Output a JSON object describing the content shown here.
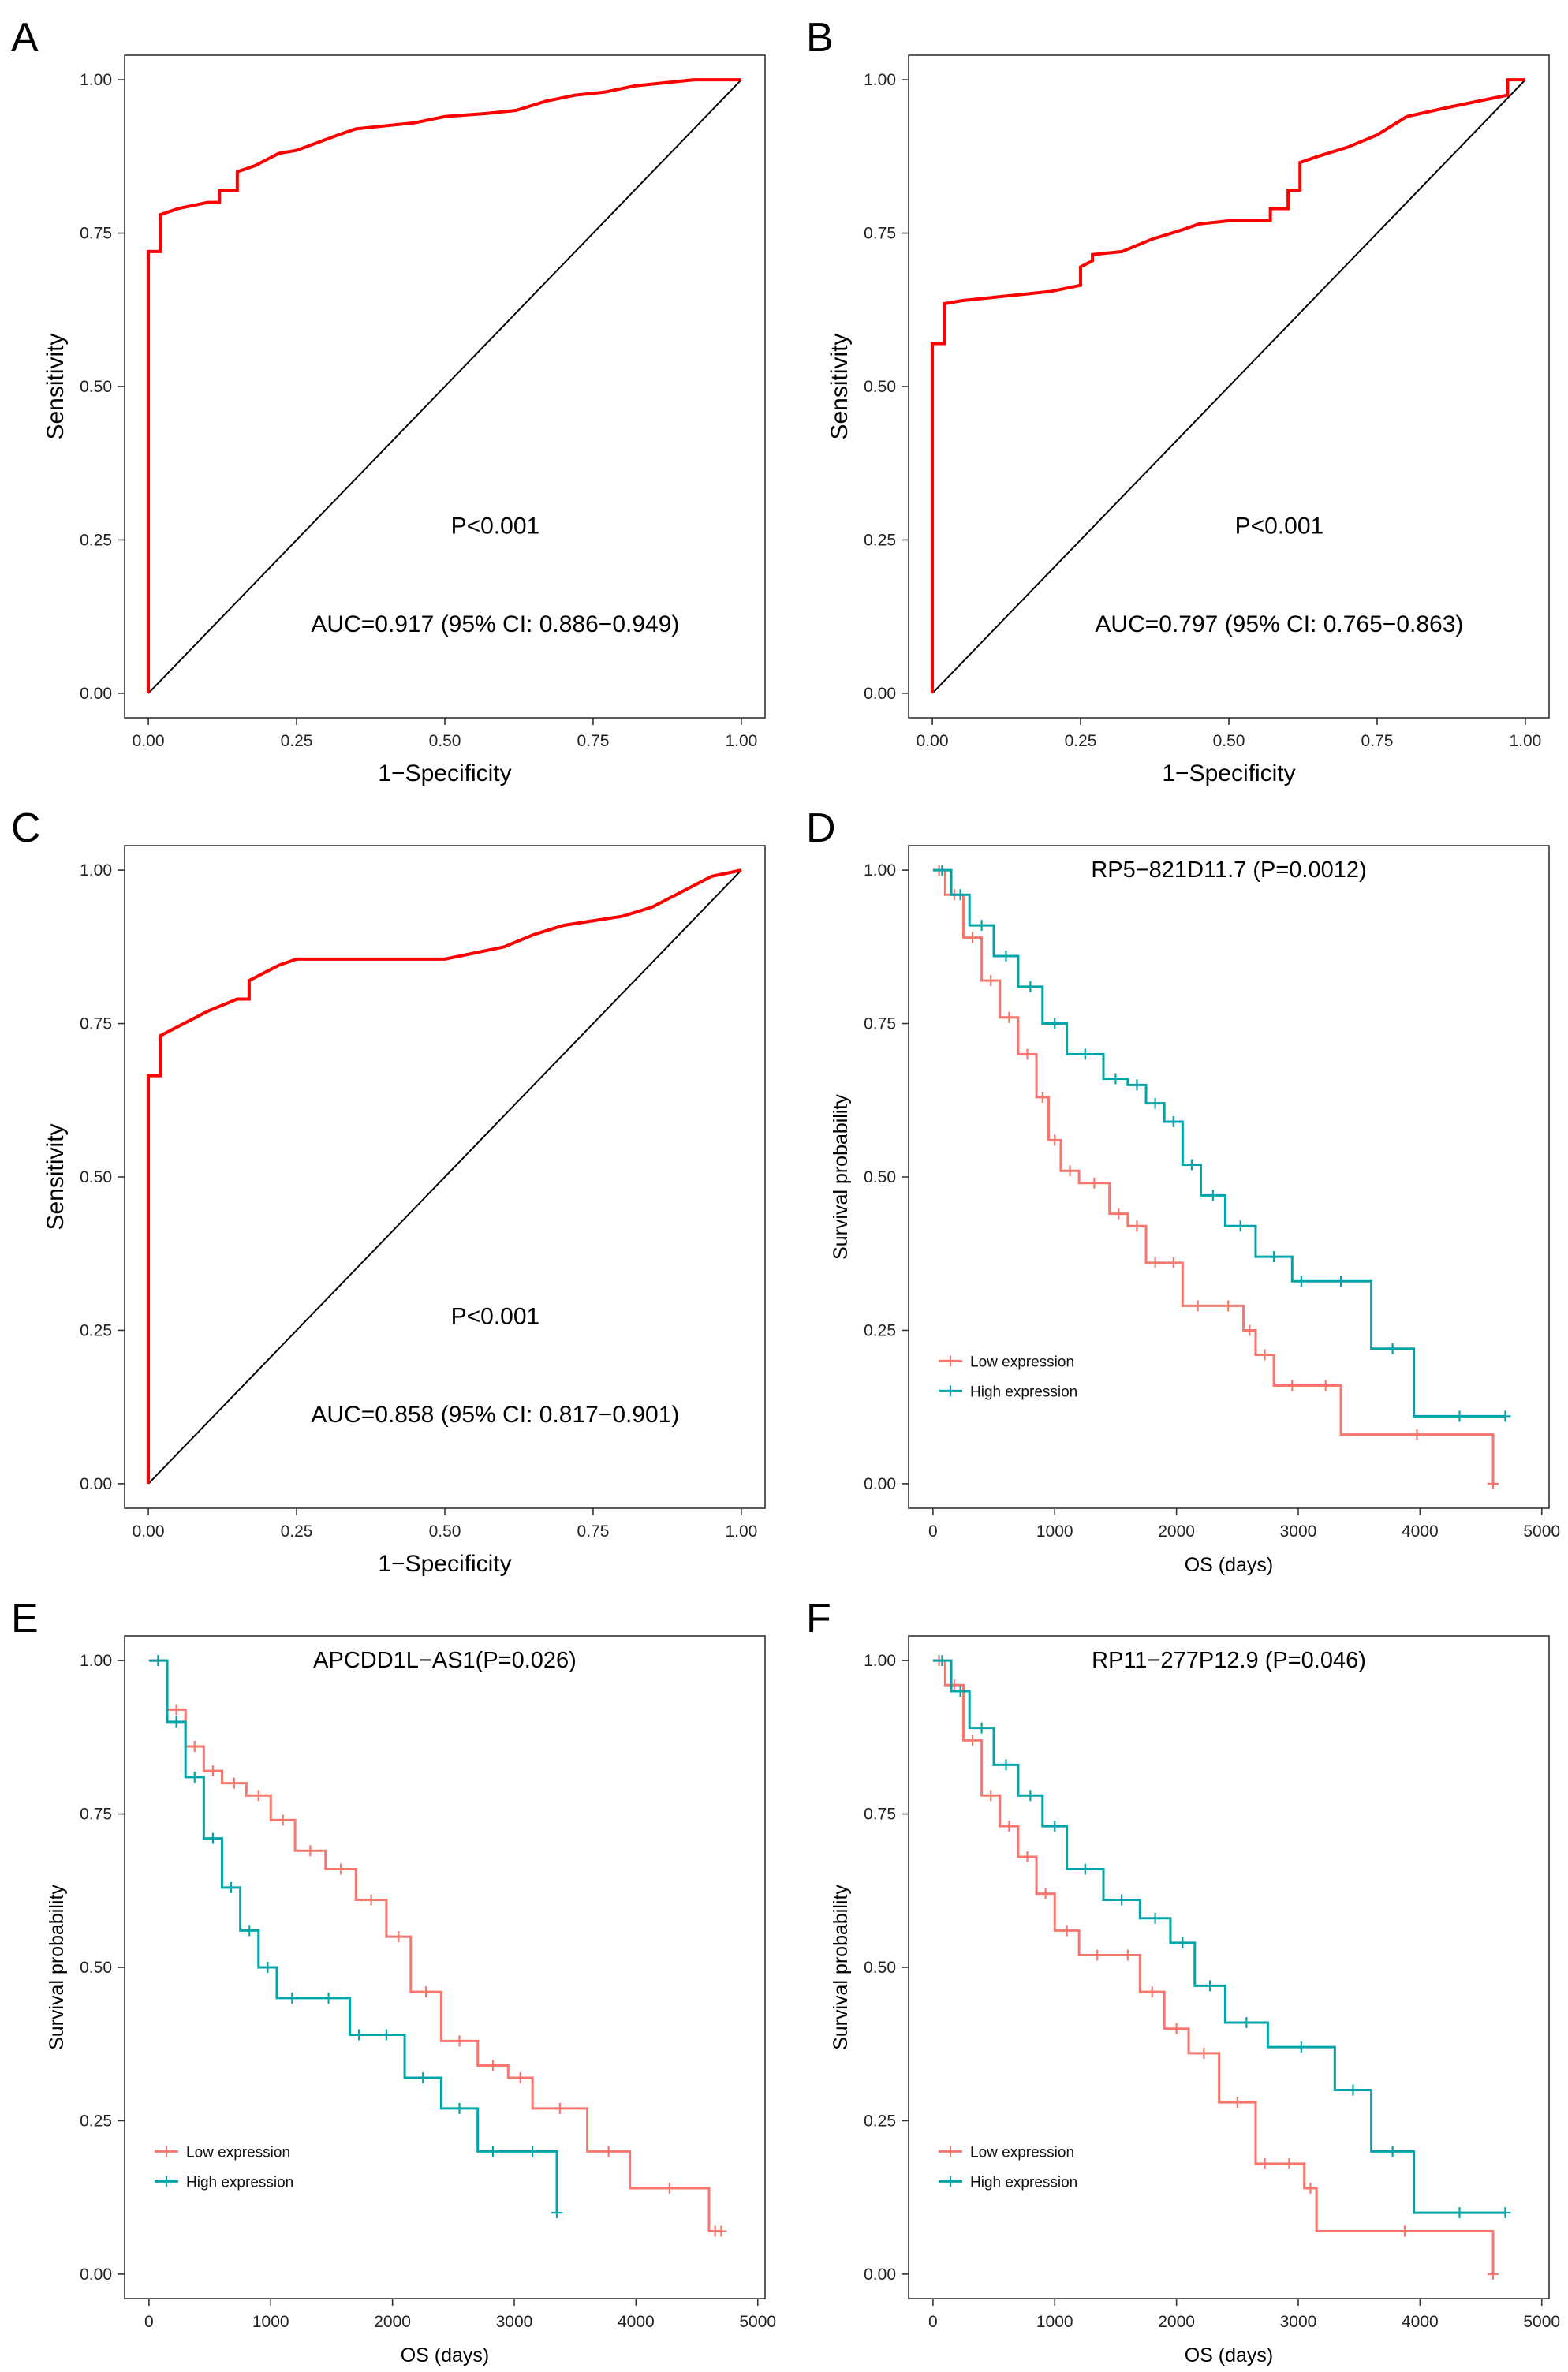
{
  "chart_data": [
    {
      "panel": "A",
      "type": "line",
      "subtype": "roc",
      "xlabel": "1−Specificity",
      "ylabel": "Sensitivity",
      "xlim": [
        0,
        1
      ],
      "ylim": [
        0,
        1
      ],
      "xticks": [
        "0.00",
        "0.25",
        "0.50",
        "0.75",
        "1.00"
      ],
      "yticks": [
        "0.00",
        "0.25",
        "0.50",
        "0.75",
        "1.00"
      ],
      "pvalue_text": "P<0.001",
      "auc_text": "AUC=0.917 (95% CI: 0.886−0.949)",
      "series": [
        {
          "name": "ROC",
          "color": "#ff0000",
          "x": [
            0,
            0,
            0.02,
            0.02,
            0.05,
            0.1,
            0.12,
            0.12,
            0.15,
            0.15,
            0.18,
            0.2,
            0.22,
            0.25,
            0.32,
            0.35,
            0.4,
            0.45,
            0.5,
            0.57,
            0.62,
            0.67,
            0.72,
            0.77,
            0.82,
            0.87,
            0.92,
            1.0
          ],
          "y": [
            0,
            0.72,
            0.72,
            0.78,
            0.79,
            0.8,
            0.8,
            0.82,
            0.82,
            0.85,
            0.86,
            0.87,
            0.88,
            0.885,
            0.91,
            0.92,
            0.925,
            0.93,
            0.94,
            0.945,
            0.95,
            0.965,
            0.975,
            0.98,
            0.99,
            0.995,
            1.0,
            1.0
          ]
        }
      ],
      "diagonal": true
    },
    {
      "panel": "B",
      "type": "line",
      "subtype": "roc",
      "xlabel": "1−Specificity",
      "ylabel": "Sensitivity",
      "xlim": [
        0,
        1
      ],
      "ylim": [
        0,
        1
      ],
      "xticks": [
        "0.00",
        "0.25",
        "0.50",
        "0.75",
        "1.00"
      ],
      "yticks": [
        "0.00",
        "0.25",
        "0.50",
        "0.75",
        "1.00"
      ],
      "pvalue_text": "P<0.001",
      "auc_text": "AUC=0.797 (95% CI: 0.765−0.863)",
      "series": [
        {
          "name": "ROC",
          "color": "#ff0000",
          "x": [
            0,
            0,
            0.02,
            0.02,
            0.05,
            0.1,
            0.15,
            0.2,
            0.25,
            0.25,
            0.27,
            0.27,
            0.32,
            0.37,
            0.42,
            0.45,
            0.5,
            0.57,
            0.57,
            0.6,
            0.6,
            0.62,
            0.62,
            0.65,
            0.7,
            0.75,
            0.8,
            0.87,
            0.97,
            0.97,
            1.0
          ],
          "y": [
            0,
            0.57,
            0.57,
            0.635,
            0.64,
            0.645,
            0.65,
            0.655,
            0.665,
            0.695,
            0.705,
            0.715,
            0.72,
            0.74,
            0.755,
            0.765,
            0.77,
            0.77,
            0.79,
            0.79,
            0.82,
            0.82,
            0.865,
            0.875,
            0.89,
            0.91,
            0.94,
            0.955,
            0.975,
            1.0,
            1.0
          ]
        }
      ],
      "diagonal": true
    },
    {
      "panel": "C",
      "type": "line",
      "subtype": "roc",
      "xlabel": "1−Specificity",
      "ylabel": "Sensitivity",
      "xlim": [
        0,
        1
      ],
      "ylim": [
        0,
        1
      ],
      "xticks": [
        "0.00",
        "0.25",
        "0.50",
        "0.75",
        "1.00"
      ],
      "yticks": [
        "0.00",
        "0.25",
        "0.50",
        "0.75",
        "1.00"
      ],
      "pvalue_text": "P<0.001",
      "auc_text": "AUC=0.858 (95% CI: 0.817−0.901)",
      "series": [
        {
          "name": "ROC",
          "color": "#ff0000",
          "x": [
            0,
            0,
            0.02,
            0.02,
            0.05,
            0.1,
            0.15,
            0.17,
            0.17,
            0.2,
            0.22,
            0.25,
            0.5,
            0.55,
            0.6,
            0.65,
            0.7,
            0.8,
            0.85,
            0.9,
            0.95,
            1.0
          ],
          "y": [
            0,
            0.665,
            0.665,
            0.73,
            0.745,
            0.77,
            0.79,
            0.79,
            0.82,
            0.835,
            0.845,
            0.855,
            0.855,
            0.865,
            0.875,
            0.895,
            0.91,
            0.925,
            0.94,
            0.965,
            0.99,
            1.0
          ]
        }
      ],
      "diagonal": true
    },
    {
      "panel": "D",
      "type": "line",
      "subtype": "kaplan-meier",
      "title": "RP5−821D11.7 (P=0.0012)",
      "xlabel": "OS (days)",
      "ylabel": "Survival probability",
      "xlim": [
        0,
        5000
      ],
      "ylim": [
        0,
        1
      ],
      "xticks": [
        "0",
        "1000",
        "2000",
        "3000",
        "4000",
        "5000"
      ],
      "yticks": [
        "0.00",
        "0.25",
        "0.50",
        "0.75",
        "1.00"
      ],
      "legend": {
        "position": "bottom-left",
        "entries": [
          "Low expression",
          "High expression"
        ]
      },
      "series": [
        {
          "name": "Low expression",
          "color": "#f8766d",
          "x": [
            0,
            100,
            250,
            400,
            550,
            700,
            850,
            950,
            1050,
            1200,
            1450,
            1600,
            1750,
            1900,
            2050,
            2300,
            2550,
            2650,
            2800,
            3100,
            3350,
            4600
          ],
          "y": [
            1.0,
            0.96,
            0.89,
            0.82,
            0.76,
            0.7,
            0.63,
            0.56,
            0.51,
            0.49,
            0.44,
            0.42,
            0.36,
            0.36,
            0.29,
            0.29,
            0.25,
            0.21,
            0.16,
            0.16,
            0.08,
            0.0
          ]
        },
        {
          "name": "High expression",
          "color": "#00a5a9",
          "x": [
            0,
            150,
            300,
            500,
            700,
            900,
            1100,
            1400,
            1600,
            1750,
            1900,
            2050,
            2200,
            2400,
            2650,
            2950,
            3100,
            3600,
            3950,
            4700
          ],
          "y": [
            1.0,
            0.96,
            0.91,
            0.86,
            0.81,
            0.75,
            0.7,
            0.66,
            0.65,
            0.62,
            0.59,
            0.52,
            0.47,
            0.42,
            0.37,
            0.33,
            0.33,
            0.22,
            0.11,
            0.11
          ]
        }
      ]
    },
    {
      "panel": "E",
      "type": "line",
      "subtype": "kaplan-meier",
      "title": "APCDD1L−AS1(P=0.026)",
      "xlabel": "OS (days)",
      "ylabel": "Survival probability",
      "xlim": [
        0,
        5000
      ],
      "ylim": [
        0,
        1
      ],
      "xticks": [
        "0",
        "1000",
        "2000",
        "3000",
        "4000",
        "5000"
      ],
      "yticks": [
        "0.00",
        "0.25",
        "0.50",
        "0.75",
        "1.00"
      ],
      "legend": {
        "position": "bottom-left",
        "entries": [
          "Low expression",
          "High expression"
        ]
      },
      "series": [
        {
          "name": "Low expression",
          "color": "#f8766d",
          "x": [
            0,
            150,
            300,
            450,
            600,
            800,
            1000,
            1200,
            1450,
            1700,
            1950,
            2150,
            2400,
            2700,
            2950,
            3150,
            3600,
            3950,
            4600,
            4700
          ],
          "y": [
            1.0,
            0.92,
            0.86,
            0.82,
            0.8,
            0.78,
            0.74,
            0.69,
            0.66,
            0.61,
            0.55,
            0.46,
            0.38,
            0.34,
            0.32,
            0.27,
            0.2,
            0.14,
            0.07,
            0.07
          ]
        },
        {
          "name": "High expression",
          "color": "#00a5a9",
          "x": [
            0,
            150,
            300,
            450,
            600,
            750,
            900,
            1050,
            1300,
            1650,
            1800,
            2100,
            2400,
            2700,
            2950,
            3350
          ],
          "y": [
            1.0,
            0.9,
            0.81,
            0.71,
            0.63,
            0.56,
            0.5,
            0.45,
            0.45,
            0.39,
            0.39,
            0.32,
            0.27,
            0.2,
            0.2,
            0.1
          ]
        }
      ]
    },
    {
      "panel": "F",
      "type": "line",
      "subtype": "kaplan-meier",
      "title": "RP11−277P12.9 (P=0.046)",
      "xlabel": "OS (days)",
      "ylabel": "Survival probability",
      "xlim": [
        0,
        5000
      ],
      "ylim": [
        0,
        1
      ],
      "xticks": [
        "0",
        "1000",
        "2000",
        "3000",
        "4000",
        "5000"
      ],
      "yticks": [
        "0.00",
        "0.25",
        "0.50",
        "0.75",
        "1.00"
      ],
      "legend": {
        "position": "bottom-left",
        "entries": [
          "Low expression",
          "High expression"
        ]
      },
      "series": [
        {
          "name": "Low expression",
          "color": "#f8766d",
          "x": [
            0,
            100,
            250,
            400,
            550,
            700,
            850,
            1000,
            1200,
            1500,
            1700,
            1900,
            2100,
            2350,
            2650,
            2800,
            3050,
            3150,
            4600
          ],
          "y": [
            1.0,
            0.96,
            0.87,
            0.78,
            0.73,
            0.68,
            0.62,
            0.56,
            0.52,
            0.52,
            0.46,
            0.4,
            0.36,
            0.28,
            0.18,
            0.18,
            0.14,
            0.07,
            0.0
          ]
        },
        {
          "name": "High expression",
          "color": "#00a5a9",
          "x": [
            0,
            150,
            300,
            500,
            700,
            900,
            1100,
            1400,
            1700,
            1950,
            2150,
            2400,
            2750,
            3300,
            3600,
            3950,
            4700
          ],
          "y": [
            1.0,
            0.95,
            0.89,
            0.83,
            0.78,
            0.73,
            0.66,
            0.61,
            0.58,
            0.54,
            0.47,
            0.41,
            0.37,
            0.3,
            0.2,
            0.1,
            0.1
          ]
        }
      ]
    }
  ]
}
